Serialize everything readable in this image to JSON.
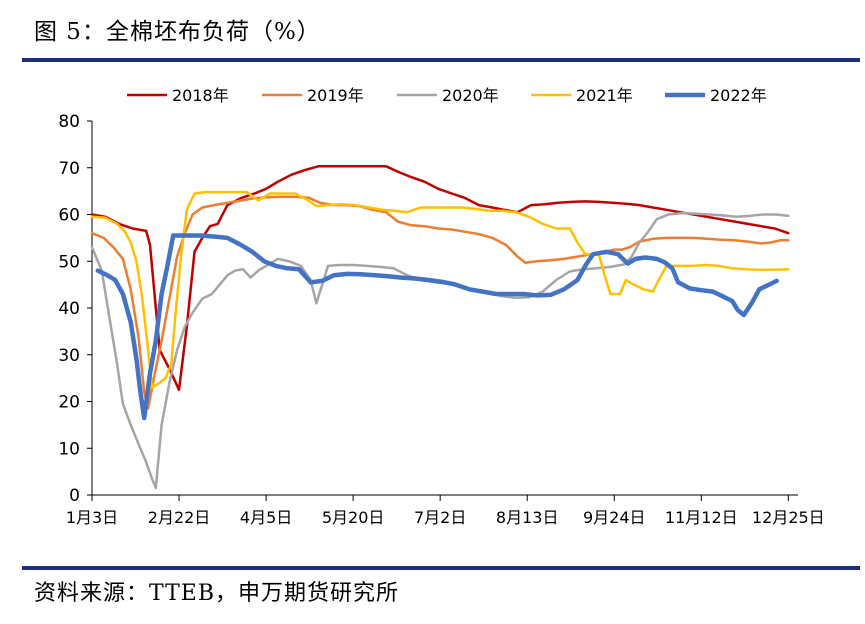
{
  "title": "图 5：全棉坯布负荷（%）",
  "source": "资料来源：TTEB，申万期货研究所",
  "chart_data": {
    "type": "line",
    "title": "",
    "xlabel": "",
    "ylabel": "",
    "ylim": [
      0,
      80
    ],
    "yticks": [
      0,
      10,
      20,
      30,
      40,
      50,
      60,
      70,
      80
    ],
    "xlim": [
      0,
      365
    ],
    "xticks": [
      {
        "x": 0,
        "label": "1月3日"
      },
      {
        "x": 45,
        "label": "2月22日"
      },
      {
        "x": 90,
        "label": "4月5日"
      },
      {
        "x": 135,
        "label": "5月20日"
      },
      {
        "x": 180,
        "label": "7月2日"
      },
      {
        "x": 225,
        "label": "8月13日"
      },
      {
        "x": 270,
        "label": "9月24日"
      },
      {
        "x": 315,
        "label": "11月12日"
      },
      {
        "x": 360,
        "label": "12月25日"
      }
    ],
    "grid": false,
    "legend": "top",
    "series": [
      {
        "name": "2018年",
        "color": "#c00000",
        "width": 2.5,
        "points": [
          [
            0,
            60
          ],
          [
            7,
            59.5
          ],
          [
            14,
            58
          ],
          [
            21,
            57
          ],
          [
            28,
            56.5
          ],
          [
            30,
            53.5
          ],
          [
            35,
            31
          ],
          [
            40,
            27
          ],
          [
            45,
            22.5
          ],
          [
            49,
            36
          ],
          [
            53,
            52
          ],
          [
            57,
            55
          ],
          [
            61,
            57.5
          ],
          [
            65,
            58
          ],
          [
            70,
            62
          ],
          [
            77,
            63.5
          ],
          [
            84,
            64.5
          ],
          [
            90,
            65.5
          ],
          [
            96,
            67
          ],
          [
            103,
            68.5
          ],
          [
            110,
            69.5
          ],
          [
            117,
            70.3
          ],
          [
            124,
            70.3
          ],
          [
            131,
            70.3
          ],
          [
            138,
            70.3
          ],
          [
            145,
            70.3
          ],
          [
            152,
            70.3
          ],
          [
            159,
            69
          ],
          [
            165,
            68
          ],
          [
            172,
            67
          ],
          [
            179,
            65.5
          ],
          [
            186,
            64.5
          ],
          [
            193,
            63.5
          ],
          [
            200,
            62
          ],
          [
            207,
            61.5
          ],
          [
            213,
            61
          ],
          [
            220,
            60.5
          ],
          [
            227,
            62
          ],
          [
            234,
            62.2
          ],
          [
            241,
            62.5
          ],
          [
            248,
            62.7
          ],
          [
            255,
            62.8
          ],
          [
            262,
            62.7
          ],
          [
            269,
            62.5
          ],
          [
            276,
            62.3
          ],
          [
            283,
            62
          ],
          [
            290,
            61.5
          ],
          [
            297,
            61
          ],
          [
            304,
            60.5
          ],
          [
            311,
            60
          ],
          [
            318,
            59.5
          ],
          [
            325,
            59
          ],
          [
            332,
            58.5
          ],
          [
            339,
            58
          ],
          [
            346,
            57.5
          ],
          [
            353,
            57
          ],
          [
            360,
            56
          ]
        ]
      },
      {
        "name": "2019年",
        "color": "#ed7d31",
        "width": 2.5,
        "points": [
          [
            0,
            56
          ],
          [
            6,
            55
          ],
          [
            11,
            53
          ],
          [
            16,
            50.5
          ],
          [
            20,
            44
          ],
          [
            24,
            34
          ],
          [
            27,
            22
          ],
          [
            29,
            18.5
          ],
          [
            32,
            25
          ],
          [
            36,
            33
          ],
          [
            40,
            42
          ],
          [
            44,
            51
          ],
          [
            48,
            56
          ],
          [
            52,
            60
          ],
          [
            57,
            61.5
          ],
          [
            63,
            62
          ],
          [
            70,
            62.5
          ],
          [
            77,
            63
          ],
          [
            84,
            63.5
          ],
          [
            91,
            63.7
          ],
          [
            98,
            63.8
          ],
          [
            105,
            63.8
          ],
          [
            112,
            63.6
          ],
          [
            118,
            62.5
          ],
          [
            125,
            62
          ],
          [
            131,
            62
          ],
          [
            138,
            61.8
          ],
          [
            145,
            61
          ],
          [
            152,
            60.5
          ],
          [
            158,
            58.5
          ],
          [
            165,
            57.7
          ],
          [
            172,
            57.5
          ],
          [
            179,
            57
          ],
          [
            186,
            56.8
          ],
          [
            193,
            56.3
          ],
          [
            200,
            55.8
          ],
          [
            207,
            55
          ],
          [
            214,
            53.5
          ],
          [
            220,
            51
          ],
          [
            224,
            49.7
          ],
          [
            230,
            50
          ],
          [
            237,
            50.2
          ],
          [
            244,
            50.5
          ],
          [
            251,
            51
          ],
          [
            258,
            51.5
          ],
          [
            265,
            52
          ],
          [
            270,
            52.5
          ],
          [
            274,
            52.5
          ],
          [
            278,
            53
          ],
          [
            283,
            54.2
          ],
          [
            290,
            54.8
          ],
          [
            297,
            55
          ],
          [
            304,
            55
          ],
          [
            311,
            55
          ],
          [
            318,
            54.8
          ],
          [
            325,
            54.6
          ],
          [
            332,
            54.5
          ],
          [
            339,
            54.2
          ],
          [
            346,
            53.8
          ],
          [
            351,
            54
          ],
          [
            356,
            54.5
          ],
          [
            360,
            54.5
          ]
        ]
      },
      {
        "name": "2020年",
        "color": "#a5a5a5",
        "width": 2.5,
        "points": [
          [
            0,
            53
          ],
          [
            5,
            48
          ],
          [
            9,
            38
          ],
          [
            13,
            28
          ],
          [
            16,
            19.5
          ],
          [
            20,
            15
          ],
          [
            24,
            11
          ],
          [
            28,
            7
          ],
          [
            31,
            3.5
          ],
          [
            33,
            1.5
          ],
          [
            36,
            15
          ],
          [
            40,
            24
          ],
          [
            44,
            31
          ],
          [
            48,
            36
          ],
          [
            52,
            39
          ],
          [
            57,
            42
          ],
          [
            62,
            43
          ],
          [
            66,
            45
          ],
          [
            70,
            47
          ],
          [
            74,
            48
          ],
          [
            78,
            48.3
          ],
          [
            82,
            46.5
          ],
          [
            86,
            48
          ],
          [
            90,
            49
          ],
          [
            96,
            50.5
          ],
          [
            102,
            50
          ],
          [
            108,
            49
          ],
          [
            113,
            46
          ],
          [
            116,
            41
          ],
          [
            119,
            45
          ],
          [
            122,
            49
          ],
          [
            128,
            49.2
          ],
          [
            135,
            49.2
          ],
          [
            142,
            49
          ],
          [
            149,
            48.8
          ],
          [
            156,
            48.5
          ],
          [
            163,
            47
          ],
          [
            170,
            46
          ],
          [
            177,
            45.5
          ],
          [
            184,
            45.2
          ],
          [
            191,
            44.5
          ],
          [
            198,
            44
          ],
          [
            205,
            43.2
          ],
          [
            212,
            42.5
          ],
          [
            219,
            42.2
          ],
          [
            226,
            42.3
          ],
          [
            233,
            43.5
          ],
          [
            240,
            46
          ],
          [
            247,
            47.8
          ],
          [
            254,
            48.3
          ],
          [
            261,
            48.5
          ],
          [
            268,
            48.8
          ],
          [
            275,
            49.3
          ],
          [
            279,
            51
          ],
          [
            283,
            54
          ],
          [
            287,
            56
          ],
          [
            292,
            59
          ],
          [
            298,
            60
          ],
          [
            305,
            60.3
          ],
          [
            312,
            60.2
          ],
          [
            319,
            60
          ],
          [
            326,
            59.8
          ],
          [
            333,
            59.5
          ],
          [
            340,
            59.7
          ],
          [
            347,
            60
          ],
          [
            354,
            60
          ],
          [
            360,
            59.7
          ]
        ]
      },
      {
        "name": "2021年",
        "color": "#ffc000",
        "width": 2.5,
        "points": [
          [
            0,
            59.5
          ],
          [
            7,
            59.3
          ],
          [
            13,
            58
          ],
          [
            17,
            56.3
          ],
          [
            20,
            54
          ],
          [
            23,
            50
          ],
          [
            26,
            42
          ],
          [
            29,
            31
          ],
          [
            31,
            23
          ],
          [
            35,
            24
          ],
          [
            38,
            25
          ],
          [
            41,
            28
          ],
          [
            43,
            38
          ],
          [
            46,
            51
          ],
          [
            49,
            61
          ],
          [
            53,
            64.5
          ],
          [
            59,
            64.8
          ],
          [
            66,
            64.8
          ],
          [
            73,
            64.8
          ],
          [
            80,
            64.8
          ],
          [
            86,
            63
          ],
          [
            92,
            64.5
          ],
          [
            98,
            64.5
          ],
          [
            105,
            64.5
          ],
          [
            111,
            63.2
          ],
          [
            116,
            61.8
          ],
          [
            122,
            62
          ],
          [
            129,
            62.2
          ],
          [
            136,
            62
          ],
          [
            143,
            61.5
          ],
          [
            150,
            61
          ],
          [
            156,
            60.8
          ],
          [
            163,
            60.5
          ],
          [
            170,
            61.5
          ],
          [
            177,
            61.5
          ],
          [
            184,
            61.5
          ],
          [
            191,
            61.5
          ],
          [
            198,
            61.2
          ],
          [
            205,
            60.8
          ],
          [
            212,
            60.8
          ],
          [
            219,
            60.5
          ],
          [
            226,
            59.5
          ],
          [
            233,
            58
          ],
          [
            240,
            57
          ],
          [
            247,
            57
          ],
          [
            251,
            54
          ],
          [
            255,
            51.5
          ],
          [
            259,
            51.5
          ],
          [
            262,
            51.5
          ],
          [
            265,
            47
          ],
          [
            268,
            43
          ],
          [
            273,
            43
          ],
          [
            276,
            46
          ],
          [
            280,
            45
          ],
          [
            285,
            44
          ],
          [
            290,
            43.5
          ],
          [
            293,
            46
          ],
          [
            297,
            49
          ],
          [
            303,
            49
          ],
          [
            310,
            49
          ],
          [
            317,
            49.2
          ],
          [
            324,
            49
          ],
          [
            331,
            48.5
          ],
          [
            338,
            48.3
          ],
          [
            345,
            48.2
          ],
          [
            352,
            48.2
          ],
          [
            360,
            48.3
          ]
        ]
      },
      {
        "name": "2022年",
        "color": "#4472c4",
        "width": 4.5,
        "points": [
          [
            3,
            48
          ],
          [
            8,
            47
          ],
          [
            12,
            46
          ],
          [
            16,
            43
          ],
          [
            20,
            37
          ],
          [
            23,
            29
          ],
          [
            25,
            22
          ],
          [
            27,
            16.5
          ],
          [
            30,
            26
          ],
          [
            33,
            33
          ],
          [
            36,
            43
          ],
          [
            39,
            49
          ],
          [
            42,
            55.5
          ],
          [
            49,
            55.5
          ],
          [
            56,
            55.5
          ],
          [
            63,
            55.3
          ],
          [
            70,
            55
          ],
          [
            77,
            53.5
          ],
          [
            83,
            52
          ],
          [
            89,
            50
          ],
          [
            95,
            49
          ],
          [
            101,
            48.5
          ],
          [
            107,
            48.3
          ],
          [
            113,
            45.5
          ],
          [
            119,
            45.8
          ],
          [
            125,
            47
          ],
          [
            132,
            47.3
          ],
          [
            139,
            47.2
          ],
          [
            146,
            47
          ],
          [
            153,
            46.8
          ],
          [
            160,
            46.5
          ],
          [
            167,
            46.3
          ],
          [
            174,
            46
          ],
          [
            181,
            45.6
          ],
          [
            188,
            45
          ],
          [
            195,
            44
          ],
          [
            202,
            43.5
          ],
          [
            209,
            43
          ],
          [
            216,
            43
          ],
          [
            223,
            43
          ],
          [
            230,
            42.7
          ],
          [
            237,
            42.8
          ],
          [
            244,
            44
          ],
          [
            251,
            46
          ],
          [
            255,
            49
          ],
          [
            259,
            51.5
          ],
          [
            266,
            52
          ],
          [
            272,
            51.5
          ],
          [
            277,
            49.5
          ],
          [
            281,
            50.5
          ],
          [
            286,
            50.8
          ],
          [
            292,
            50.5
          ],
          [
            296,
            49.8
          ],
          [
            300,
            48.5
          ],
          [
            303,
            45.5
          ],
          [
            309,
            44.2
          ],
          [
            315,
            43.8
          ],
          [
            321,
            43.5
          ],
          [
            326,
            42.5
          ],
          [
            331,
            41.5
          ],
          [
            334,
            39.5
          ],
          [
            337,
            38.5
          ],
          [
            341,
            41
          ],
          [
            345,
            44
          ],
          [
            350,
            45
          ],
          [
            354,
            45.8
          ]
        ]
      }
    ]
  }
}
